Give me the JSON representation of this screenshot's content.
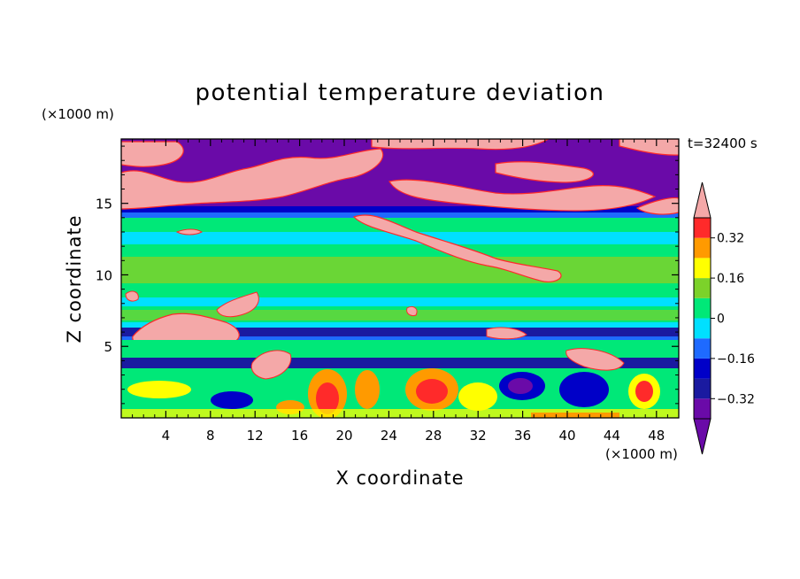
{
  "chart_data": {
    "type": "heatmap",
    "title": "potential temperature deviation",
    "xlabel": "X coordinate",
    "ylabel": "Z coordinate",
    "x_unit": "(×1000 m)",
    "y_unit": "(×1000 m)",
    "time_label": "t=32400 s",
    "xlim": [
      0,
      50
    ],
    "ylim": [
      0,
      19.5
    ],
    "x_ticks": [
      4,
      8,
      12,
      16,
      20,
      24,
      28,
      32,
      36,
      40,
      44,
      48
    ],
    "y_ticks": [
      5,
      10,
      15
    ],
    "colorbar": {
      "levels": [
        -0.4,
        -0.32,
        -0.24,
        -0.16,
        -0.08,
        0,
        0.08,
        0.16,
        0.24,
        0.32,
        0.4
      ],
      "tick_labels": [
        "0.32",
        "0.16",
        "0",
        "−0.16",
        "−0.32"
      ],
      "tick_values": [
        0.32,
        0.16,
        0,
        -0.16,
        -0.32
      ],
      "colors": [
        "#6a0aa8",
        "#1a1aa0",
        "#0000c8",
        "#1e6aff",
        "#00e0ff",
        "#00e878",
        "#7cd22a",
        "#ffff00",
        "#ff9a00",
        "#ff2a2a",
        "#f4a8a8"
      ],
      "extend": "both"
    },
    "layers": [
      {
        "z_range": [
          0,
          1.8
        ],
        "value": "alternating warm/cold cells, amplitude > 0.32"
      },
      {
        "z_range": [
          1.8,
          3.8
        ],
        "value": -0.02
      },
      {
        "z_range": [
          3.8,
          4.6
        ],
        "value": -0.3
      },
      {
        "z_range": [
          4.6,
          5.5
        ],
        "value": 0.02
      },
      {
        "z_range": [
          5.5,
          5.9
        ],
        "value": -0.2
      },
      {
        "z_range": [
          5.9,
          6.3
        ],
        "value": -0.35
      },
      {
        "z_range": [
          6.3,
          14
        ],
        "value": 0.0
      },
      {
        "z_range": [
          14,
          14.6
        ],
        "value": -0.3
      },
      {
        "z_range": [
          14.6,
          19.5
        ],
        "value": "purple (< -0.4) with pink patches (> 0.4)"
      }
    ]
  }
}
